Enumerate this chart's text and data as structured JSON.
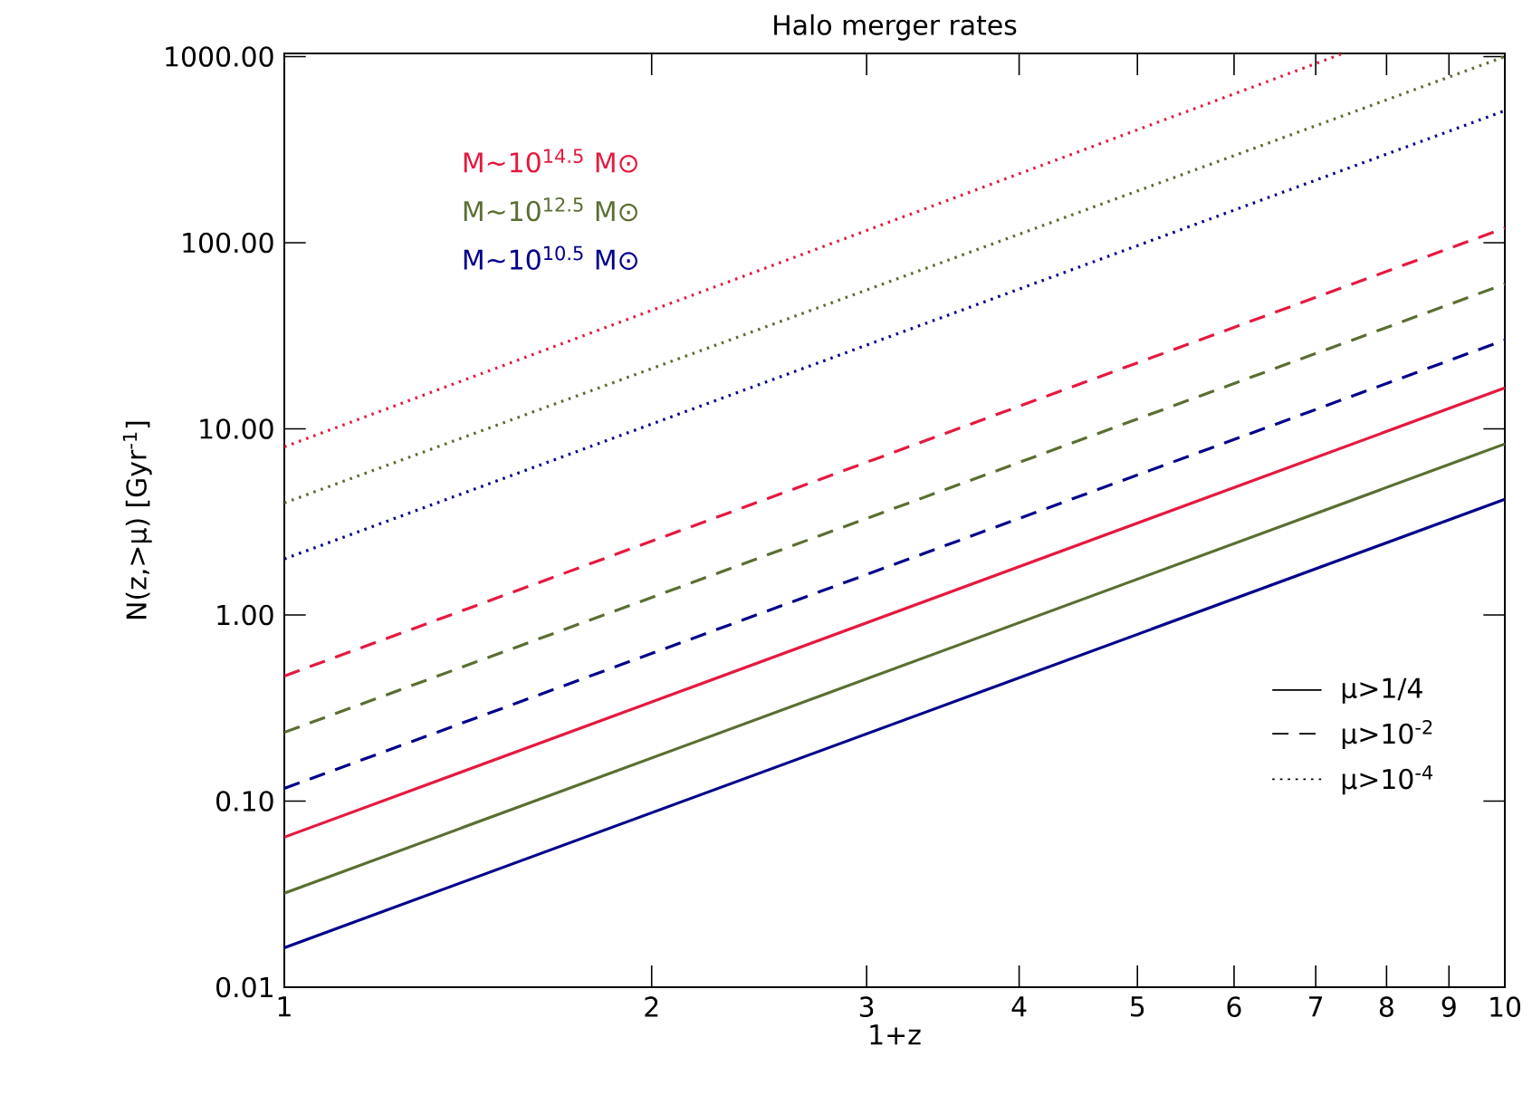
{
  "chart_data": {
    "type": "line",
    "title": "Halo merger rates",
    "xlabel": "1+z",
    "ylabel": "N(z,>μ)  [Gyr$^{-1}$]",
    "log": "xy",
    "grid": false,
    "legend": "top left",
    "xlim": [
      1,
      10
    ],
    "xticks": [
      1,
      2,
      3,
      4,
      5,
      6,
      7,
      8,
      9,
      10
    ],
    "ylim": [
      0.01,
      1040
    ],
    "yticks": [
      {
        "value": 0.01,
        "label": "0.01"
      },
      {
        "value": 0.1,
        "label": "0.10"
      },
      {
        "value": 1,
        "label": "1.00"
      },
      {
        "value": 10,
        "label": "10.00"
      },
      {
        "value": 100,
        "label": "100.00"
      },
      {
        "value": 1000,
        "label": "1000.00"
      }
    ],
    "annotations": [
      "μ>1/4",
      "μ>10$^{-2}$",
      "μ>10$^{-4}$"
    ],
    "series": [
      {
        "color": "#e5193f",
        "line_style": "solid",
        "x": [
          1,
          10
        ],
        "values": [
          0.064,
          16.6
        ]
      },
      {
        "color": "#5a6e32",
        "line_style": "solid",
        "x": [
          1,
          10
        ],
        "values": [
          0.032,
          8.3
        ]
      },
      {
        "color": "#00008b",
        "line_style": "solid",
        "x": [
          1,
          10
        ],
        "values": [
          0.0163,
          4.18
        ]
      },
      {
        "color": "#e5193f",
        "line_style": "dashed",
        "x": [
          1,
          10
        ],
        "values": [
          0.47,
          120
        ]
      },
      {
        "color": "#5a6e32",
        "line_style": "dashed",
        "x": [
          1,
          10
        ],
        "values": [
          0.234,
          60
        ]
      },
      {
        "color": "#00008b",
        "line_style": "dashed",
        "x": [
          1,
          10
        ],
        "values": [
          0.117,
          30
        ]
      },
      {
        "name": "M~10$^{14.5}$ M⊙",
        "color": "#e5193f",
        "line_style": "dotted",
        "x": [
          1,
          7.34
        ],
        "values": [
          8.0,
          1030
        ]
      },
      {
        "name": "M~10$^{12.5}$ M⊙",
        "color": "#5a6e32",
        "line_style": "dotted",
        "x": [
          1,
          10
        ],
        "values": [
          4.0,
          1000
        ]
      },
      {
        "name": "M~10$^{10.5}$ M⊙",
        "color": "#00008b",
        "line_style": "dotted",
        "x": [
          1,
          10
        ],
        "values": [
          2.0,
          512
        ]
      }
    ]
  }
}
